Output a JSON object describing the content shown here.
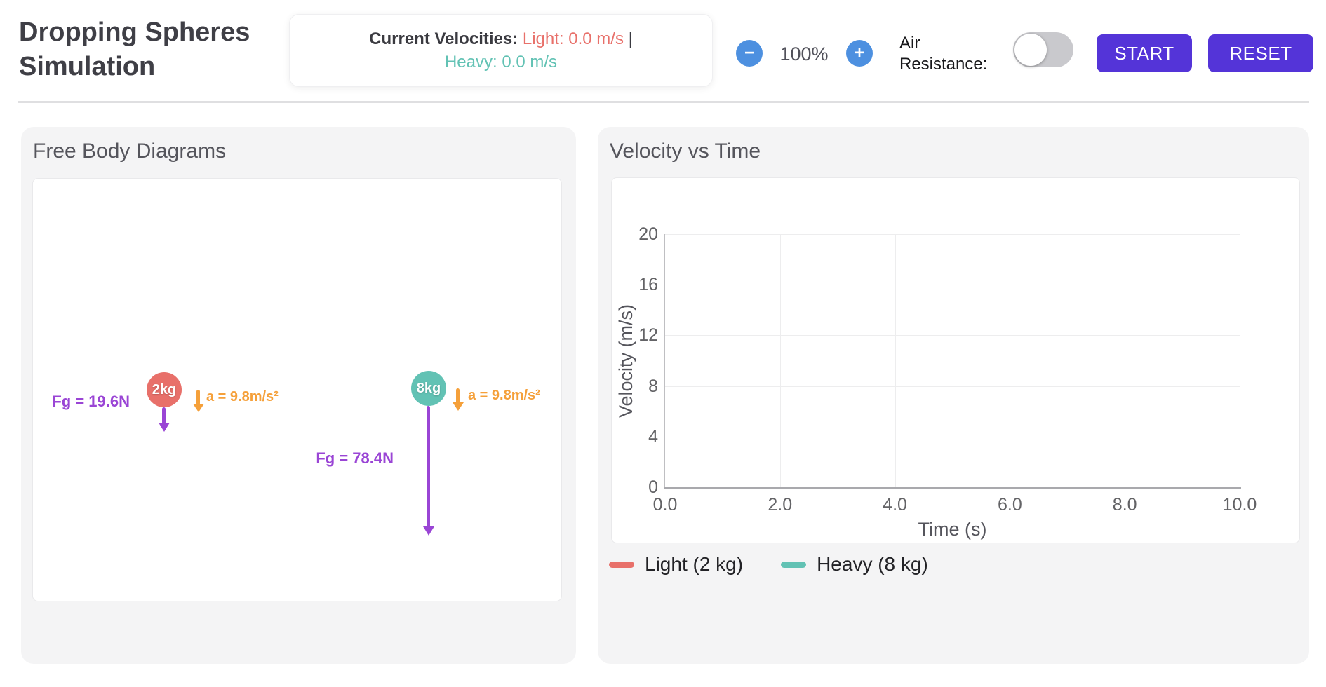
{
  "header": {
    "title": "Dropping Spheres Simulation",
    "velocity_readout": {
      "label": "Current Velocities:",
      "light": "Light: 0.0 m/s",
      "separator": "|",
      "heavy": "Heavy: 0.0 m/s"
    },
    "zoom": {
      "minus": "−",
      "level": "100%",
      "plus": "+"
    },
    "air_resistance_label": "Air Resistance:",
    "air_resistance_on": false,
    "start_label": "START",
    "reset_label": "RESET"
  },
  "colors": {
    "light": "#e8706a",
    "heavy": "#62c2b4",
    "force": "#9a45d5",
    "accel": "#f5a03a",
    "button": "#5434d8",
    "zoom_button": "#4d90e0"
  },
  "panels": {
    "free_body": {
      "title": "Free Body Diagrams",
      "light": {
        "mass": "2kg",
        "force_label": "Fg = 19.6N",
        "accel_label": "a = 9.8m/s²"
      },
      "heavy": {
        "mass": "8kg",
        "force_label": "Fg = 78.4N",
        "accel_label": "a = 9.8m/s²"
      }
    },
    "chart_panel": {
      "title": "Velocity vs Time"
    }
  },
  "chart_data": {
    "type": "line",
    "title": "Velocity vs Time",
    "xlabel": "Time (s)",
    "ylabel": "Velocity (m/s)",
    "xlim": [
      0,
      10
    ],
    "ylim": [
      0,
      20
    ],
    "x_ticks": [
      "0.0",
      "2.0",
      "4.0",
      "6.0",
      "8.0",
      "10.0"
    ],
    "y_ticks": [
      "0",
      "4",
      "8",
      "12",
      "16",
      "20"
    ],
    "grid": true,
    "legend_position": "bottom",
    "series": [
      {
        "name": "Light (2 kg)",
        "color": "#e8706a",
        "x": [],
        "values": []
      },
      {
        "name": "Heavy (8 kg)",
        "color": "#62c2b4",
        "x": [],
        "values": []
      }
    ]
  }
}
